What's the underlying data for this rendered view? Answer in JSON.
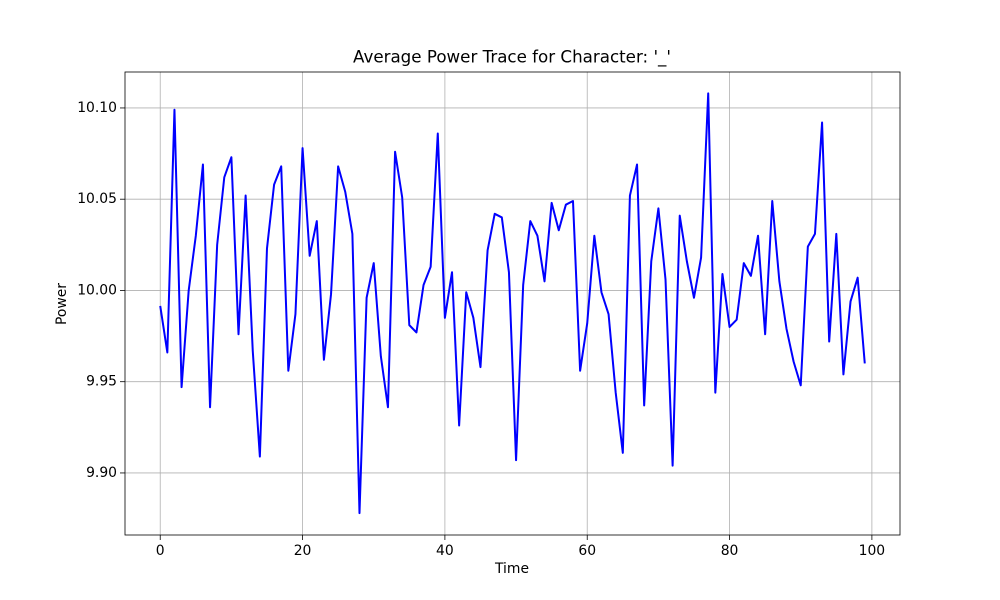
{
  "chart_data": {
    "type": "line",
    "title": "Average Power Trace for Character: '_'",
    "xlabel": "Time",
    "ylabel": "Power",
    "x": [
      0,
      1,
      2,
      3,
      4,
      5,
      6,
      7,
      8,
      9,
      10,
      11,
      12,
      13,
      14,
      15,
      16,
      17,
      18,
      19,
      20,
      21,
      22,
      23,
      24,
      25,
      26,
      27,
      28,
      29,
      30,
      31,
      32,
      33,
      34,
      35,
      36,
      37,
      38,
      39,
      40,
      41,
      42,
      43,
      44,
      45,
      46,
      47,
      48,
      49,
      50,
      51,
      52,
      53,
      54,
      55,
      56,
      57,
      58,
      59,
      60,
      61,
      62,
      63,
      64,
      65,
      66,
      67,
      68,
      69,
      70,
      71,
      72,
      73,
      74,
      75,
      76,
      77,
      78,
      79,
      80,
      81,
      82,
      83,
      84,
      85,
      86,
      87,
      88,
      89,
      90,
      91,
      92,
      93,
      94,
      95,
      96,
      97,
      98,
      99
    ],
    "series": [
      {
        "name": "Power",
        "color": "#0000ff",
        "values": [
          9.9915,
          9.966,
          10.099,
          9.947,
          10.0,
          10.03,
          10.069,
          9.936,
          10.025,
          10.062,
          10.073,
          9.976,
          10.052,
          9.967,
          9.909,
          10.023,
          10.058,
          10.068,
          9.956,
          9.987,
          10.078,
          10.019,
          10.038,
          9.962,
          9.998,
          10.068,
          10.054,
          10.031,
          9.878,
          9.996,
          10.015,
          9.964,
          9.936,
          10.076,
          10.051,
          9.981,
          9.977,
          10.003,
          10.013,
          10.086,
          9.985,
          10.01,
          9.926,
          9.999,
          9.985,
          9.958,
          10.022,
          10.042,
          10.04,
          10.01,
          9.907,
          10.003,
          10.038,
          10.03,
          10.005,
          10.048,
          10.033,
          10.047,
          10.049,
          9.956,
          9.982,
          10.03,
          9.999,
          9.987,
          9.944,
          9.911,
          10.052,
          10.069,
          9.937,
          10.016,
          10.045,
          10.006,
          9.904,
          10.041,
          10.016,
          9.996,
          10.018,
          10.108,
          9.944,
          10.009,
          9.98,
          9.984,
          10.015,
          10.008,
          10.03,
          9.976,
          10.049,
          10.005,
          9.979,
          9.961,
          9.948,
          10.024,
          10.031,
          10.092,
          9.972,
          10.031,
          9.954,
          9.994,
          10.007,
          9.96
        ]
      }
    ],
    "xlim": [
      -4.95,
      103.95
    ],
    "ylim": [
      9.866,
      10.1197
    ],
    "xticks": [
      0,
      20,
      40,
      60,
      80,
      100
    ],
    "yticks": [
      {
        "value": 9.9,
        "label": "9.90"
      },
      9.95,
      {
        "value": 10.0,
        "label": "10.00"
      },
      10.05,
      {
        "value": 10.1,
        "label": "10.10"
      }
    ],
    "grid": true
  }
}
